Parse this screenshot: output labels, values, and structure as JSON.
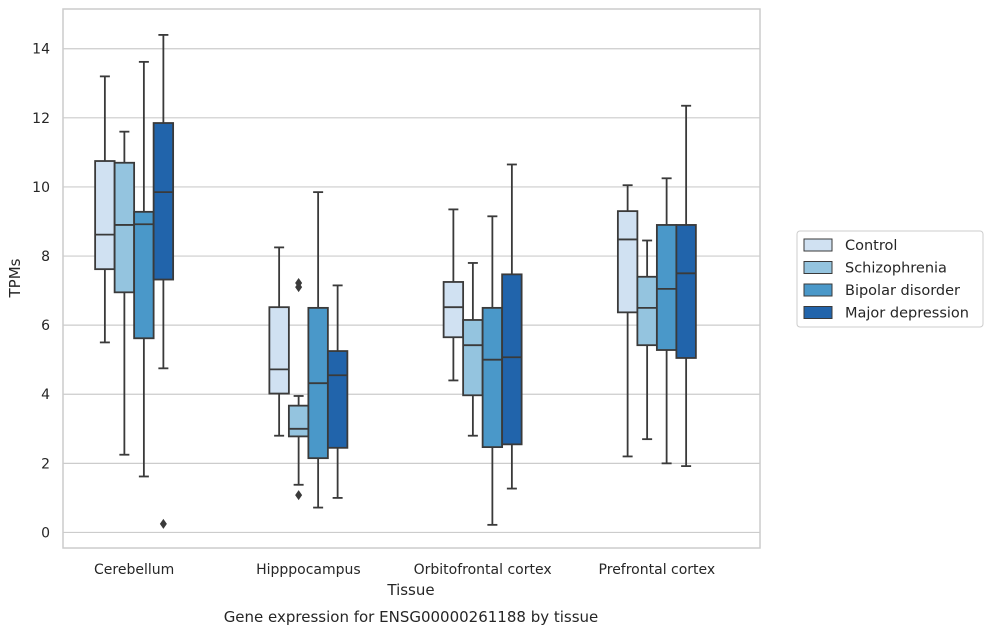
{
  "chart_data": {
    "type": "boxplot",
    "caption": "Gene expression for ENSG00000261188 by tissue",
    "xlabel": "Tissue",
    "ylabel": "TPMs",
    "ylim": [
      -0.45,
      15.15
    ],
    "yticks": [
      0,
      2,
      4,
      6,
      8,
      10,
      12,
      14
    ],
    "grid": "horizontal",
    "legend_position": "right",
    "categories": [
      "Cerebellum",
      "Hipppocampus",
      "Orbitofrontal cortex",
      "Prefrontal cortex"
    ],
    "series": [
      {
        "name": "Control",
        "color": "#d0e1f2",
        "boxes": [
          {
            "whislo": 5.5,
            "q1": 7.62,
            "med": 8.62,
            "q3": 10.75,
            "whishi": 13.2,
            "fliers": []
          },
          {
            "whislo": 2.8,
            "q1": 4.02,
            "med": 4.72,
            "q3": 6.52,
            "whishi": 8.25,
            "fliers": []
          },
          {
            "whislo": 4.4,
            "q1": 5.65,
            "med": 6.52,
            "q3": 7.25,
            "whishi": 9.35,
            "fliers": []
          },
          {
            "whislo": 2.2,
            "q1": 6.37,
            "med": 8.48,
            "q3": 9.3,
            "whishi": 10.05,
            "fliers": []
          }
        ]
      },
      {
        "name": "Schizophrenia",
        "color": "#94c4df",
        "boxes": [
          {
            "whislo": 2.25,
            "q1": 6.95,
            "med": 8.9,
            "q3": 10.7,
            "whishi": 11.6,
            "fliers": []
          },
          {
            "whislo": 1.38,
            "q1": 2.78,
            "med": 3.0,
            "q3": 3.67,
            "whishi": 3.95,
            "fliers": [
              7.22,
              7.1,
              1.08
            ]
          },
          {
            "whislo": 2.8,
            "q1": 3.97,
            "med": 5.42,
            "q3": 6.15,
            "whishi": 7.8,
            "fliers": []
          },
          {
            "whislo": 2.7,
            "q1": 5.42,
            "med": 6.5,
            "q3": 7.4,
            "whishi": 8.45,
            "fliers": []
          }
        ]
      },
      {
        "name": "Bipolar disorder",
        "color": "#4a98c9",
        "boxes": [
          {
            "whislo": 1.62,
            "q1": 5.62,
            "med": 8.92,
            "q3": 9.28,
            "whishi": 13.62,
            "fliers": []
          },
          {
            "whislo": 0.72,
            "q1": 2.15,
            "med": 4.32,
            "q3": 6.5,
            "whishi": 9.85,
            "fliers": []
          },
          {
            "whislo": 0.22,
            "q1": 2.47,
            "med": 5.0,
            "q3": 6.5,
            "whishi": 9.15,
            "fliers": []
          },
          {
            "whislo": 2.0,
            "q1": 5.28,
            "med": 7.05,
            "q3": 8.9,
            "whishi": 10.25,
            "fliers": []
          }
        ]
      },
      {
        "name": "Major depression",
        "color": "#2164ab",
        "boxes": [
          {
            "whislo": 4.75,
            "q1": 7.32,
            "med": 9.85,
            "q3": 11.85,
            "whishi": 14.4,
            "fliers": [
              0.25
            ]
          },
          {
            "whislo": 1.0,
            "q1": 2.45,
            "med": 4.55,
            "q3": 5.25,
            "whishi": 7.15,
            "fliers": []
          },
          {
            "whislo": 1.27,
            "q1": 2.55,
            "med": 5.07,
            "q3": 7.47,
            "whishi": 10.65,
            "fliers": []
          },
          {
            "whislo": 1.92,
            "q1": 5.05,
            "med": 7.5,
            "q3": 8.9,
            "whishi": 12.35,
            "fliers": []
          }
        ]
      }
    ]
  }
}
